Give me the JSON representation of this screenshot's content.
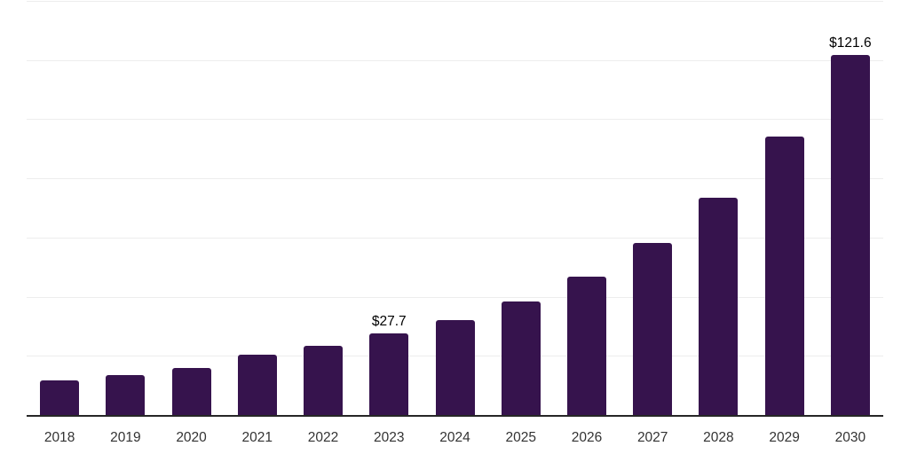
{
  "chart_data": {
    "type": "bar",
    "title": "",
    "xlabel": "",
    "ylabel": "",
    "categories": [
      "2018",
      "2019",
      "2020",
      "2021",
      "2022",
      "2023",
      "2024",
      "2025",
      "2026",
      "2027",
      "2028",
      "2029",
      "2030"
    ],
    "values": [
      11.7,
      13.6,
      15.8,
      20.4,
      23.5,
      27.7,
      32.2,
      38.5,
      46.9,
      58.3,
      73.3,
      94.0,
      121.6
    ],
    "annotations": [
      {
        "category": "2023",
        "label": "$27.7"
      },
      {
        "category": "2030",
        "label": "$121.6"
      }
    ],
    "ylim": [
      0,
      140
    ],
    "gridline_step": 20,
    "grid": "horizontal",
    "legend_position": "none",
    "colors": {
      "bar": "#36134D",
      "gridline": "#ededed",
      "axis": "#262626",
      "tick_label": "#333333",
      "data_label": "#000000",
      "background": "#ffffff"
    }
  }
}
